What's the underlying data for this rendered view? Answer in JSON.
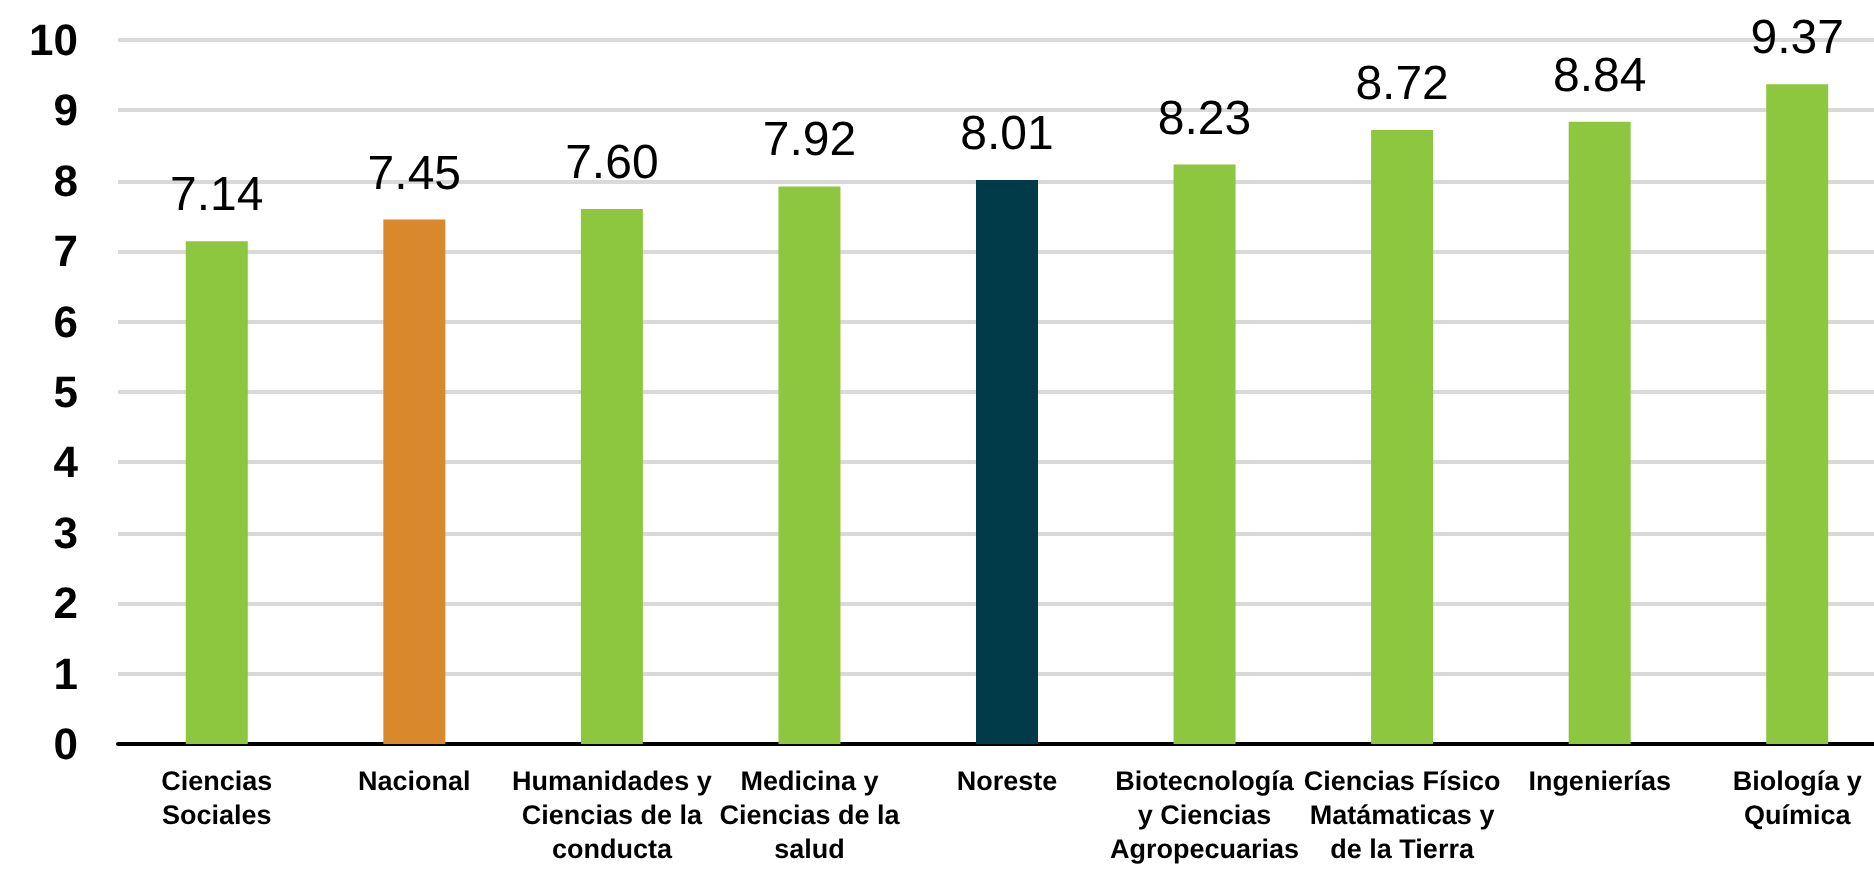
{
  "chart_data": {
    "type": "bar",
    "categories": [
      "Ciencias\nSociales",
      "Nacional",
      "Humanidades y\nCiencias de la\nconducta",
      "Medicina y\nCiencias de la\nsalud",
      "Noreste",
      "Biotecnología\ny Ciencias\nAgropecuarias",
      "Ciencias Físico\nMatámaticas y\nde la Tierra",
      "Ingenierías",
      "Biología y\nQuímica"
    ],
    "values": [
      7.14,
      7.45,
      7.6,
      7.92,
      8.01,
      8.23,
      8.72,
      8.84,
      9.37
    ],
    "colors": [
      "#8dc63f",
      "#d9892b",
      "#8dc63f",
      "#8dc63f",
      "#013a48",
      "#8dc63f",
      "#8dc63f",
      "#8dc63f",
      "#8dc63f"
    ],
    "value_labels": [
      "7.14",
      "7.45",
      "7.60",
      "7.92",
      "8.01",
      "8.23",
      "8.72",
      "8.84",
      "9.37"
    ],
    "ylim": [
      0,
      10
    ],
    "yticks": [
      0,
      1,
      2,
      3,
      4,
      5,
      6,
      7,
      8,
      9,
      10
    ],
    "grid": "y"
  }
}
